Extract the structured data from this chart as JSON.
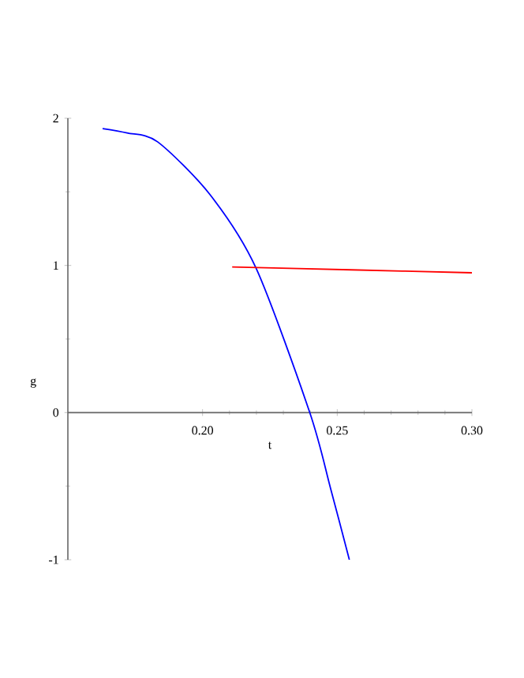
{
  "chart_data": {
    "type": "line",
    "xlabel": "t",
    "ylabel": "g",
    "xlim": [
      0.15,
      0.3
    ],
    "ylim": [
      -1,
      2
    ],
    "xticks": [
      {
        "value": 0.2,
        "label": "0.20"
      },
      0.25,
      {
        "value": 0.3,
        "label": "0.30"
      }
    ],
    "yticks": [
      -1,
      0,
      1,
      2
    ],
    "grid": false,
    "marker": "none",
    "line_style": "solid",
    "series": [
      {
        "color": "#0000ff",
        "x": [
          0.1629,
          0.172,
          0.1833,
          0.2028,
          0.2199,
          0.2398,
          0.2476,
          0.2545
        ],
        "values": [
          1.93,
          1.9,
          1.84,
          1.48,
          0.98,
          0.0,
          -0.52,
          -1.0
        ]
      },
      {
        "color": "#ff0000",
        "x": [
          0.211,
          0.255,
          0.3
        ],
        "values": [
          0.99,
          0.97,
          0.95
        ]
      }
    ]
  }
}
